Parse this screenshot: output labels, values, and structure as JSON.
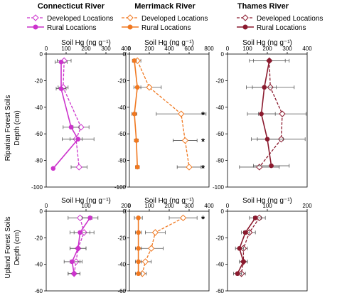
{
  "chart_data": {
    "type": "line",
    "column_titles": [
      "Connecticut River",
      "Merrimack River",
      "Thames River"
    ],
    "legend": [
      "Developed Locations",
      "Rural Locations"
    ],
    "x_axis_label": "Soil Hg (ng g⁻¹)",
    "row_labels": [
      [
        "Riparian Forest Soils",
        "Depth (cm)"
      ],
      [
        "Upland Forest Soils",
        "Depth (cm)"
      ]
    ],
    "colors": [
      "#cc33cc",
      "#f07820",
      "#8b1a2e"
    ],
    "grid": false,
    "annotation": "*",
    "panels": [
      {
        "row": 0,
        "col": 0,
        "xlim": [
          0,
          400
        ],
        "xticks": [
          0,
          100,
          200,
          300,
          400
        ],
        "ylim": [
          -100,
          0
        ],
        "yticks": [
          0,
          -20,
          -40,
          -60,
          -80,
          -100
        ],
        "series": [
          {
            "name": "Developed Locations",
            "style": "dashed",
            "marker": "open-diamond",
            "points": [
              {
                "x": 90,
                "y": -5,
                "err": 35
              },
              {
                "x": 85,
                "y": -25,
                "err": 25
              },
              {
                "x": 175,
                "y": -55,
                "err": 40
              },
              {
                "x": 150,
                "y": -64,
                "err": 30
              },
              {
                "x": 165,
                "y": -85,
                "err": 40
              }
            ]
          },
          {
            "name": "Rural Locations",
            "style": "solid",
            "marker": "filled-circle",
            "points": [
              {
                "x": 75,
                "y": -6,
                "err": 30
              },
              {
                "x": 75,
                "y": -26,
                "err": 25
              },
              {
                "x": 125,
                "y": -55,
                "err": 40
              },
              {
                "x": 160,
                "y": -64,
                "err": 80
              },
              {
                "x": 35,
                "y": -86,
                "err": 0
              }
            ]
          }
        ],
        "stars_at_y": []
      },
      {
        "row": 0,
        "col": 1,
        "xlim": [
          0,
          800
        ],
        "xticks": [
          0,
          200,
          400,
          600,
          800
        ],
        "ylim": [
          -100,
          0
        ],
        "yticks": [
          0,
          -20,
          -40,
          -60,
          -80,
          -100
        ],
        "series": [
          {
            "name": "Developed Locations",
            "style": "dashed",
            "marker": "open-diamond",
            "points": [
              {
                "x": 80,
                "y": -5,
                "err": 35
              },
              {
                "x": 200,
                "y": -25,
                "err": 120
              },
              {
                "x": 520,
                "y": -45,
                "err": 250
              },
              {
                "x": 560,
                "y": -65,
                "err": 120
              },
              {
                "x": 600,
                "y": -85,
                "err": 120
              }
            ]
          },
          {
            "name": "Rural Locations",
            "style": "solid",
            "marker": "filled-circle",
            "points": [
              {
                "x": 50,
                "y": -5,
                "err": 20
              },
              {
                "x": 80,
                "y": -25,
                "err": 35
              },
              {
                "x": 50,
                "y": -45,
                "err": 25
              },
              {
                "x": 70,
                "y": -65,
                "err": 20
              },
              {
                "x": 80,
                "y": -85,
                "err": 20
              }
            ]
          }
        ],
        "stars_at_y": [
          -45,
          -65,
          -85
        ]
      },
      {
        "row": 0,
        "col": 2,
        "xlim": [
          0,
          400
        ],
        "xticks": [
          0,
          100,
          200,
          300,
          400
        ],
        "ylim": [
          -100,
          0
        ],
        "yticks": [
          0,
          -20,
          -40,
          -60,
          -80,
          -100
        ],
        "series": [
          {
            "name": "Developed Locations",
            "style": "dashed",
            "marker": "open-diamond",
            "points": [
              {
                "x": 210,
                "y": -5,
                "err": 100
              },
              {
                "x": 215,
                "y": -25,
                "err": 120
              },
              {
                "x": 275,
                "y": -45,
                "err": 120
              },
              {
                "x": 270,
                "y": -64,
                "err": 120
              },
              {
                "x": 160,
                "y": -85,
                "err": 100
              }
            ]
          },
          {
            "name": "Rural Locations",
            "style": "solid",
            "marker": "filled-circle",
            "points": [
              {
                "x": 210,
                "y": -5,
                "err": 80
              },
              {
                "x": 185,
                "y": -25,
                "err": 60
              },
              {
                "x": 170,
                "y": -45,
                "err": 70
              },
              {
                "x": 200,
                "y": -64,
                "err": 80
              },
              {
                "x": 220,
                "y": -84,
                "err": 90
              }
            ]
          }
        ],
        "stars_at_y": []
      },
      {
        "row": 1,
        "col": 0,
        "xlim": [
          0,
          200
        ],
        "xticks": [
          0,
          100,
          200
        ],
        "ylim": [
          -60,
          0
        ],
        "yticks": [
          0,
          -20,
          -40,
          -60
        ],
        "series": [
          {
            "name": "Developed Locations",
            "style": "dashed",
            "marker": "open-diamond",
            "points": [
              {
                "x": 85,
                "y": -5,
                "err": 30
              },
              {
                "x": 95,
                "y": -16,
                "err": 25
              },
              {
                "x": 80,
                "y": -28,
                "err": 20
              },
              {
                "x": 75,
                "y": -38,
                "err": 15
              },
              {
                "x": 70,
                "y": -47,
                "err": 15
              }
            ]
          },
          {
            "name": "Rural Locations",
            "style": "solid",
            "marker": "filled-circle",
            "points": [
              {
                "x": 110,
                "y": -5,
                "err": 20
              },
              {
                "x": 85,
                "y": -16,
                "err": 25
              },
              {
                "x": 80,
                "y": -28,
                "err": 20
              },
              {
                "x": 65,
                "y": -38,
                "err": 20
              },
              {
                "x": 70,
                "y": -47,
                "err": 15
              }
            ]
          }
        ],
        "stars_at_y": []
      },
      {
        "row": 1,
        "col": 1,
        "xlim": [
          0,
          400
        ],
        "xticks": [
          0,
          100,
          200,
          300,
          400
        ],
        "ylim": [
          -60,
          0
        ],
        "yticks": [
          0,
          -20,
          -40,
          -60
        ],
        "series": [
          {
            "name": "Developed Locations",
            "style": "dashed",
            "marker": "open-diamond",
            "points": [
              {
                "x": 270,
                "y": -5,
                "err": 70
              },
              {
                "x": 130,
                "y": -16,
                "err": 50
              },
              {
                "x": 110,
                "y": -28,
                "err": 60
              },
              {
                "x": 80,
                "y": -38,
                "err": 30
              },
              {
                "x": 65,
                "y": -47,
                "err": 20
              }
            ]
          },
          {
            "name": "Rural Locations",
            "style": "solid",
            "marker": "filled-circle",
            "points": [
              {
                "x": 45,
                "y": -5,
                "err": 20
              },
              {
                "x": 45,
                "y": -16,
                "err": 15
              },
              {
                "x": 45,
                "y": -28,
                "err": 15
              },
              {
                "x": 45,
                "y": -38,
                "err": 15
              },
              {
                "x": 45,
                "y": -47,
                "err": 15
              }
            ]
          }
        ],
        "stars_at_y": [
          -5
        ]
      },
      {
        "row": 1,
        "col": 2,
        "xlim": [
          0,
          200
        ],
        "xticks": [
          0,
          100,
          200
        ],
        "ylim": [
          -60,
          0
        ],
        "yticks": [
          0,
          -20,
          -40,
          -60
        ],
        "series": [
          {
            "name": "Developed Locations",
            "style": "dashed",
            "marker": "open-diamond",
            "points": [
              {
                "x": 80,
                "y": -5,
                "err": 15
              },
              {
                "x": 55,
                "y": -16,
                "err": 15
              },
              {
                "x": 40,
                "y": -28,
                "err": 10
              },
              {
                "x": 40,
                "y": -38,
                "err": 10
              },
              {
                "x": 35,
                "y": -47,
                "err": 10
              }
            ]
          },
          {
            "name": "Rural Locations",
            "style": "solid",
            "marker": "filled-circle",
            "points": [
              {
                "x": 70,
                "y": -5,
                "err": 15
              },
              {
                "x": 45,
                "y": -16,
                "err": 10
              },
              {
                "x": 30,
                "y": -28,
                "err": 10
              },
              {
                "x": 40,
                "y": -38,
                "err": 10
              },
              {
                "x": 25,
                "y": -47,
                "err": 10
              }
            ]
          }
        ],
        "stars_at_y": []
      }
    ]
  }
}
